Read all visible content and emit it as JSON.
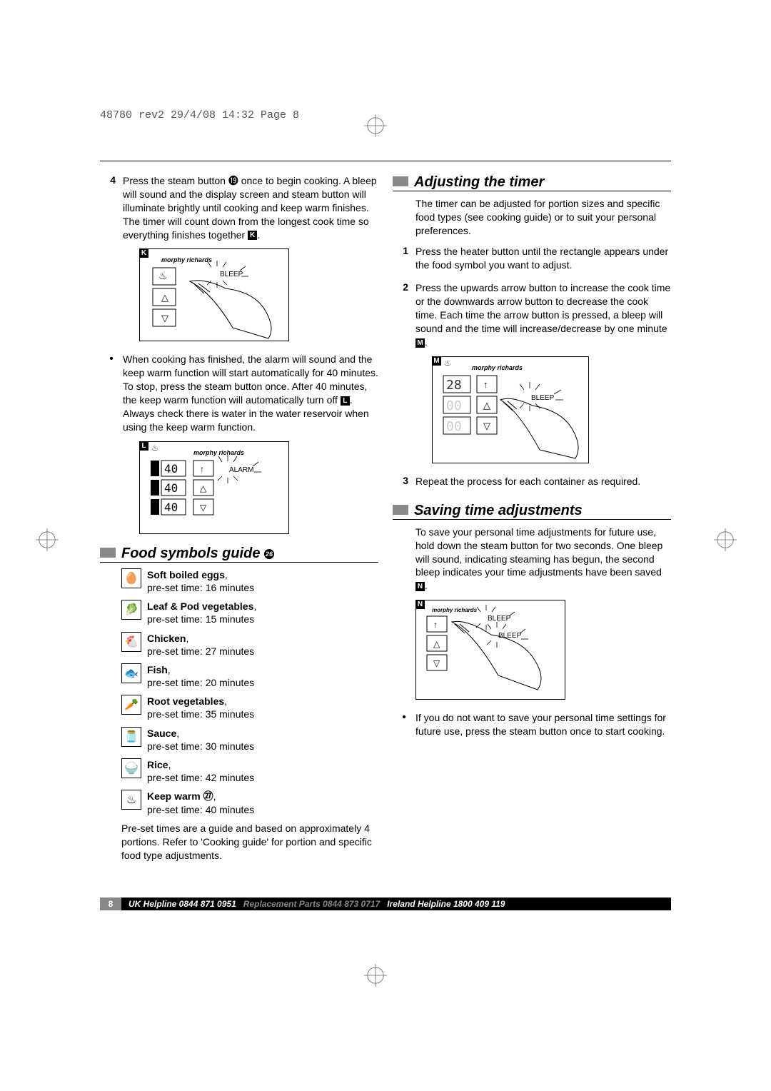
{
  "header": "48780 rev2  29/4/08  14:32  Page 8",
  "left": {
    "step4_num": "4",
    "step4_text": "Press the steam button ⓳ once to begin cooking. A bleep will sound and the display screen and steam button will illuminate brightly until cooking and keep warm finishes. The timer will count down from the longest cook time so everything finishes together",
    "step4_ref": "K",
    "bullet1": "When cooking has finished, the alarm will sound and the keep warm function will start automatically for 40 minutes. To stop, press the steam button once. After 40 minutes, the keep warm function will automatically turn off",
    "bullet1_ref": "L",
    "bullet1_tail": ". Always check there is water in the water reservoir when using the keep warm function.",
    "section1": "Food symbols guide",
    "section1_ref": "26",
    "food": [
      {
        "icon": "🥚",
        "name": "Soft boiled eggs",
        "time": "pre-set time: 16 minutes"
      },
      {
        "icon": "🥬",
        "name": "Leaf & Pod vegetables",
        "time": "pre-set time: 15 minutes"
      },
      {
        "icon": "🐔",
        "name": "Chicken",
        "time": "pre-set time: 27 minutes"
      },
      {
        "icon": "🐟",
        "name": "Fish",
        "time": "pre-set time: 20 minutes"
      },
      {
        "icon": "🥕",
        "name": "Root vegetables",
        "time": "pre-set time: 35 minutes"
      },
      {
        "icon": "🫙",
        "name": "Sauce",
        "time": "pre-set time: 30 minutes"
      },
      {
        "icon": "🍚",
        "name": "Rice",
        "time": "pre-set time: 42 minutes"
      },
      {
        "icon": "♨",
        "name": "Keep warm ㉗",
        "time": "pre-set time: 40 minutes"
      }
    ],
    "footnote": "Pre-set times are a guide and based on approximately 4 portions. Refer to 'Cooking guide' for portion and specific food type adjustments."
  },
  "right": {
    "section2": "Adjusting the timer",
    "intro": "The timer can be adjusted for portion sizes and specific food types (see cooking guide) or to suit your personal preferences.",
    "step1_num": "1",
    "step1": "Press the heater button until the rectangle appears under the food symbol you want to adjust.",
    "step2_num": "2",
    "step2": "Press the upwards arrow button to increase the cook time or the downwards arrow button to decrease the cook time. Each time the arrow button is pressed, a bleep will sound and the time will increase/decrease by one minute",
    "step2_ref": "M",
    "step3_num": "3",
    "step3": "Repeat the process for each container as required.",
    "section3": "Saving time adjustments",
    "save_text": "To save your personal time adjustments for future use, hold down the steam button for two seconds. One bleep will sound, indicating steaming has begun, the second bleep indicates your time adjustments have been saved",
    "save_ref": "N",
    "bullet2": "If you do not want to save your personal time settings for future use, press the steam button once to start cooking."
  },
  "diagrams": {
    "K": {
      "label": "K",
      "brand": "morphy richards",
      "note": "BLEEP"
    },
    "L": {
      "label": "L",
      "brand": "morphy richards",
      "note": "ALARM",
      "nums": "40"
    },
    "M": {
      "label": "M",
      "brand": "morphy richards",
      "note": "BLEEP",
      "nums": "28"
    },
    "N": {
      "label": "N",
      "brand": "morphy richards",
      "note1": "BLEEP",
      "note2": "BLEEP"
    }
  },
  "footer": {
    "page": "8",
    "uk": "UK Helpline 0844 871 0951",
    "parts": "Replacement Parts 0844 873 0717",
    "ie": "Ireland Helpline 1800 409 119"
  }
}
